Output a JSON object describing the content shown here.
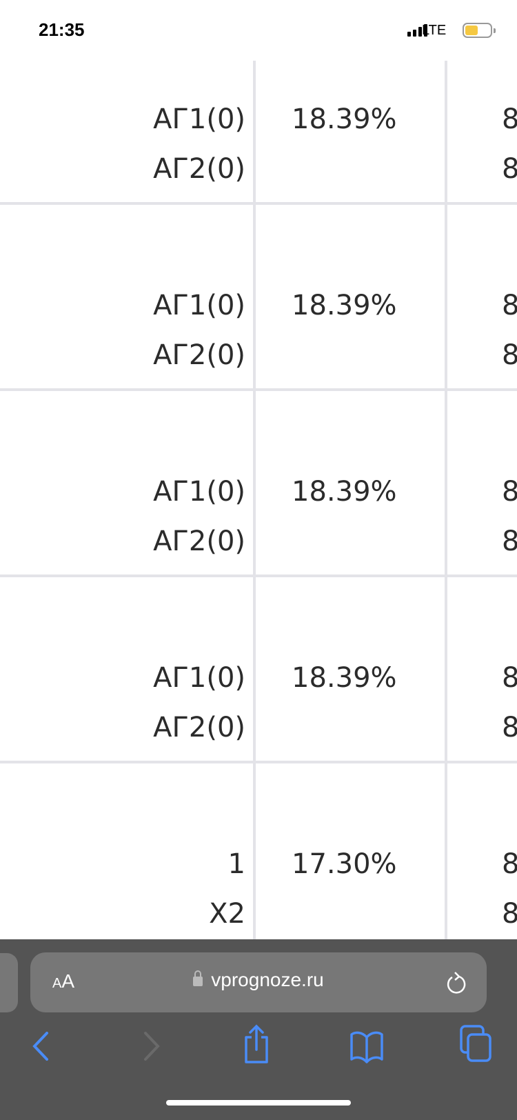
{
  "status_bar": {
    "time": "21:35",
    "network": "LTE",
    "battery_color": "#f5c842"
  },
  "table": {
    "rows": [
      {
        "selection": [
          "АГ1(0)",
          "АГ2(0)"
        ],
        "probability": "18.39%",
        "odds": [
          "8",
          "8"
        ]
      },
      {
        "selection": [
          "АГ1(0)",
          "АГ2(0)"
        ],
        "probability": "18.39%",
        "odds": [
          "8",
          "8"
        ]
      },
      {
        "selection": [
          "АГ1(0)",
          "АГ2(0)"
        ],
        "probability": "18.39%",
        "odds": [
          "8",
          "8"
        ]
      },
      {
        "selection": [
          "АГ1(0)",
          "АГ2(0)"
        ],
        "probability": "18.39%",
        "odds": [
          "8",
          "8"
        ]
      },
      {
        "selection": [
          "1",
          "X2"
        ],
        "probability": "17.30%",
        "odds": [
          "8",
          "8"
        ]
      }
    ]
  },
  "browser": {
    "aa_small": "A",
    "aa_large": "A",
    "domain": "vprognoze.ru",
    "accent": "#4a8cf7",
    "icons": [
      "back-icon",
      "forward-icon",
      "share-icon",
      "bookmarks-icon",
      "tabs-icon",
      "reload-icon",
      "lock-icon"
    ]
  }
}
